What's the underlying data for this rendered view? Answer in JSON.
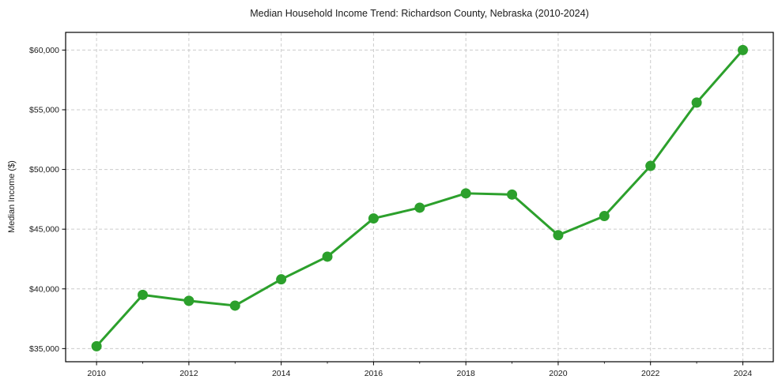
{
  "chart_data": {
    "type": "line",
    "title": "Median Household Income Trend: Richardson County, Nebraska (2010-2024)",
    "xlabel": "",
    "ylabel": "Median Income ($)",
    "x": [
      2010,
      2011,
      2012,
      2013,
      2014,
      2015,
      2016,
      2017,
      2018,
      2019,
      2020,
      2021,
      2022,
      2023,
      2024
    ],
    "values": [
      35200,
      39500,
      39000,
      38600,
      40800,
      42700,
      45900,
      46800,
      48000,
      47900,
      44500,
      46100,
      50300,
      55600,
      60000
    ],
    "series_name": "Median Household Income",
    "x_ticks": [
      2010,
      2012,
      2014,
      2016,
      2018,
      2020,
      2022,
      2024
    ],
    "x_tick_labels": [
      "2010",
      "2012",
      "2014",
      "2016",
      "2018",
      "2020",
      "2022",
      "2024"
    ],
    "x_minor_ticks": [
      2011,
      2013,
      2015,
      2017,
      2019,
      2021,
      2023
    ],
    "y_ticks": [
      35000,
      40000,
      45000,
      50000,
      55000,
      60000
    ],
    "y_tick_labels": [
      "$35,000",
      "$40,000",
      "$45,000",
      "$50,000",
      "$55,000",
      "$60,000"
    ],
    "xlim": [
      2009.33,
      2024.66
    ],
    "ylim": [
      33900,
      61480
    ],
    "grid": true,
    "grid_style": "dashed",
    "legend": "none",
    "colors": {
      "line": "#2ca02c",
      "marker": "#2ca02c",
      "grid": "#cccccc",
      "spine": "#000000",
      "text": "#1a1a1a",
      "background": "#ffffff"
    }
  }
}
